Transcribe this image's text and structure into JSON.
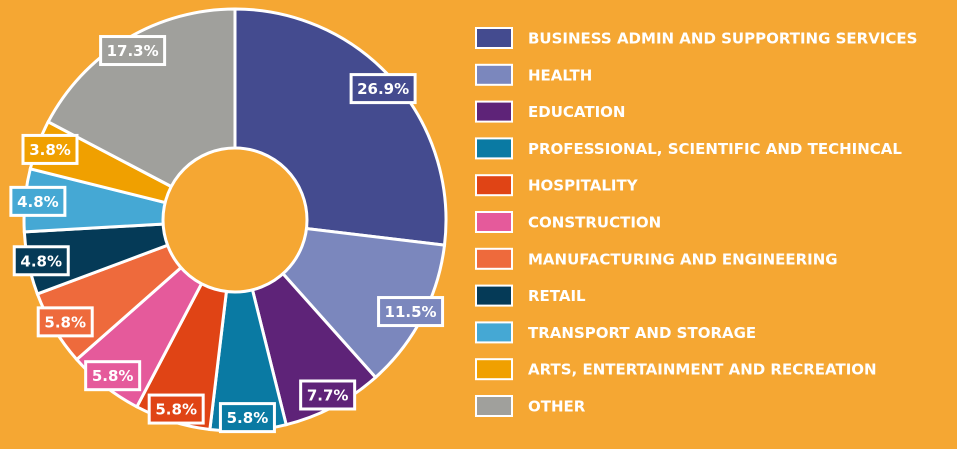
{
  "chart_data": {
    "type": "donut",
    "categories": [
      "BUSINESS ADMIN AND SUPPORTING SERVICES",
      "HEALTH",
      "EDUCATION",
      "PROFESSIONAL, SCIENTIFIC AND TECHINCAL",
      "HOSPITALITY",
      "CONSTRUCTION",
      "MANUFACTURING AND ENGINEERING",
      "RETAIL",
      "TRANSPORT AND STORAGE",
      "ARTS, ENTERTAINMENT AND RECREATION",
      "OTHER"
    ],
    "values": [
      26.9,
      11.5,
      7.7,
      5.8,
      5.8,
      5.8,
      5.8,
      4.8,
      4.8,
      3.8,
      17.3
    ],
    "value_labels": [
      "26.9%",
      "11.5%",
      "7.7%",
      "5.8%",
      "5.8%",
      "5.8%",
      "5.8%",
      "4.8%",
      "4.8%",
      "3.8%",
      "17.3%"
    ],
    "colors": [
      "#444b8f",
      "#7b87bd",
      "#5e2378",
      "#0a7aa3",
      "#e04415",
      "#e55a9b",
      "#ee6a3c",
      "#053a57",
      "#45a8d4",
      "#f0a000",
      "#a0a09c"
    ],
    "legend": "right"
  }
}
